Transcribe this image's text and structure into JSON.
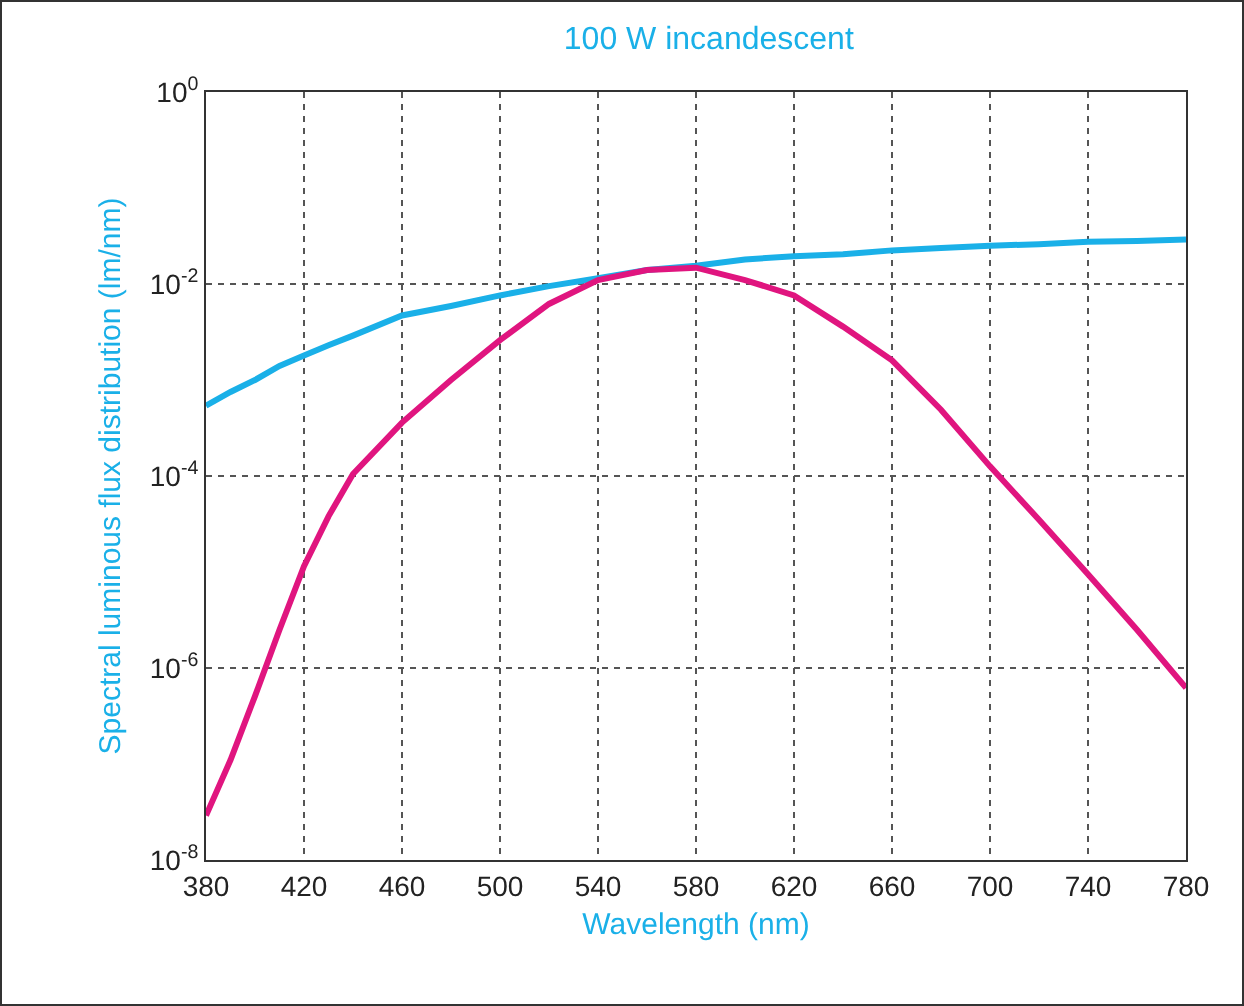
{
  "chart_data": {
    "type": "line",
    "title": "100 W incandescent",
    "xlabel": "Wavelength (nm)",
    "ylabel": "Spectral luminous flux distribution (lm/nm)",
    "log": "y",
    "grid": true,
    "marker": "none",
    "line_style": "solid",
    "x": [
      380,
      390,
      400,
      410,
      420,
      430,
      440,
      460,
      480,
      500,
      520,
      540,
      560,
      580,
      600,
      620,
      640,
      660,
      680,
      700,
      720,
      740,
      760,
      780
    ],
    "series": [
      {
        "color": "#1ab0e8",
        "values": [
          0.00054,
          0.00075,
          0.001,
          0.0014,
          0.0018,
          0.0023,
          0.0029,
          0.0047,
          0.0059,
          0.0076,
          0.0095,
          0.0115,
          0.014,
          0.0155,
          0.018,
          0.0195,
          0.0204,
          0.0224,
          0.0237,
          0.025,
          0.026,
          0.0275,
          0.028,
          0.029
        ]
      },
      {
        "color": "#e0157f",
        "values": [
          2.9e-08,
          1.1e-07,
          5.1e-07,
          2.5e-06,
          1.15e-05,
          3.8e-05,
          0.000105,
          0.00036,
          0.001,
          0.0026,
          0.0062,
          0.011,
          0.014,
          0.0148,
          0.011,
          0.0076,
          0.0036,
          0.0016,
          0.00049,
          0.000126,
          3.5e-05,
          9.5e-06,
          2.5e-06,
          6.2e-07
        ]
      }
    ],
    "xlim": [
      380,
      780
    ],
    "xticks": [
      380,
      420,
      460,
      500,
      540,
      580,
      620,
      660,
      700,
      740,
      780
    ],
    "ylim": [
      1e-08,
      1
    ],
    "yticks": [
      {
        "value": 1e-08,
        "label": "10$^{-8}$"
      },
      {
        "value": 1e-06,
        "label": "10$^{-6}$"
      },
      {
        "value": 0.0001,
        "label": "10$^{-4}$"
      },
      {
        "value": 0.01,
        "label": "10$^{-2}$"
      },
      {
        "value": 1,
        "label": "10$^{0}$"
      }
    ]
  }
}
